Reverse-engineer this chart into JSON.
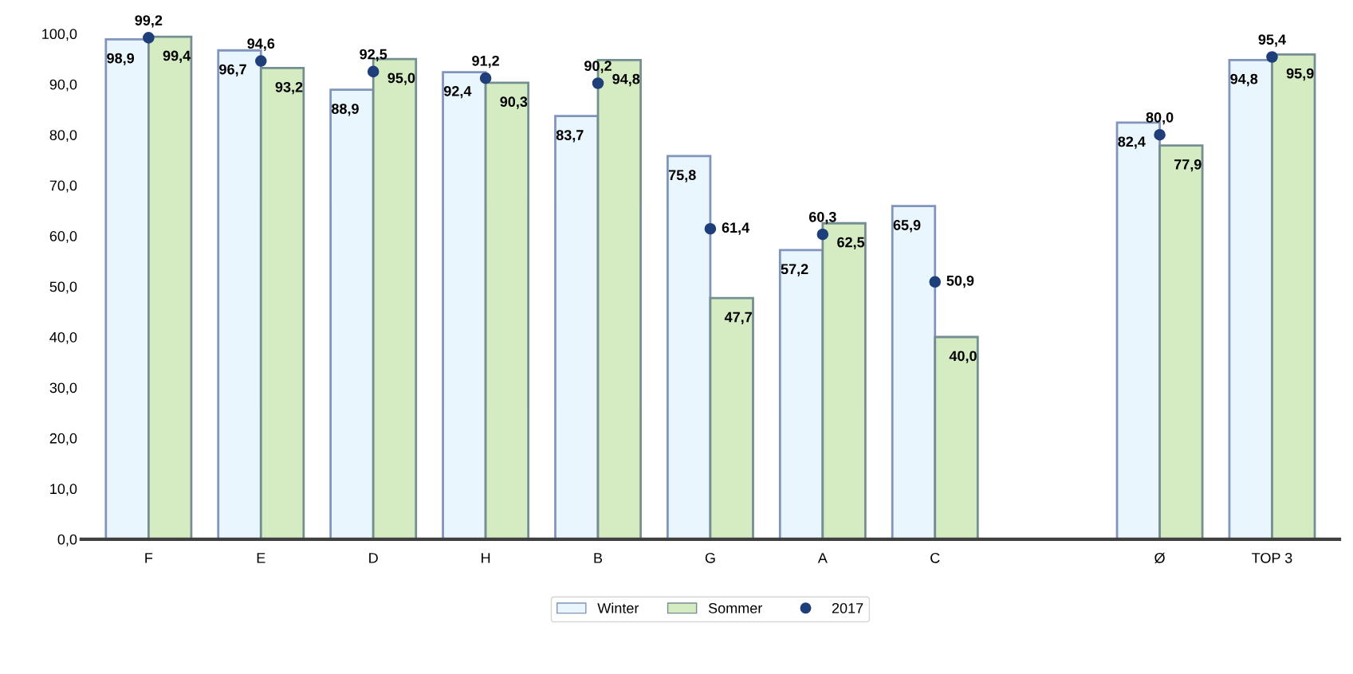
{
  "chart_data": {
    "type": "bar",
    "categories": [
      "F",
      "E",
      "D",
      "H",
      "B",
      "G",
      "A",
      "C",
      null,
      "Ø",
      "TOP 3"
    ],
    "series": [
      {
        "name": "Winter",
        "color": "#eaf6fd",
        "values": [
          98.9,
          96.7,
          88.9,
          92.4,
          83.7,
          75.8,
          57.2,
          65.9,
          null,
          82.4,
          94.8
        ],
        "value_labels": [
          "98,9",
          "96,7",
          "88,9",
          "92,4",
          "83,7",
          "75,8",
          "57,2",
          "65,9",
          null,
          "82,4",
          "94,8"
        ]
      },
      {
        "name": "Sommer",
        "color": "#d5ecc2",
        "values": [
          99.4,
          93.2,
          95.0,
          90.3,
          94.8,
          47.7,
          62.5,
          40.0,
          null,
          77.9,
          95.9
        ],
        "value_labels": [
          "99,4",
          "93,2",
          "95,0",
          "90,3",
          "94,8",
          "47,7",
          "62,5",
          "40,0",
          null,
          "77,9",
          "95,9"
        ]
      },
      {
        "name": "2017",
        "type": "scatter",
        "color": "#1f3f7a",
        "values": [
          99.2,
          94.6,
          92.5,
          91.2,
          90.2,
          61.4,
          60.3,
          50.9,
          null,
          80.0,
          95.4
        ],
        "value_labels": [
          "99,2",
          "94,6",
          "92,5",
          "91,2",
          "90,2",
          "61,4",
          "60,3",
          "50,9",
          null,
          "80,0",
          "95,4"
        ]
      }
    ],
    "ylim": [
      0,
      100
    ],
    "yticks": [
      {
        "value": 0,
        "label": "0,0"
      },
      {
        "value": 10,
        "label": "10,0"
      },
      {
        "value": 20,
        "label": "20,0"
      },
      {
        "value": 30,
        "label": "30,0"
      },
      {
        "value": 40,
        "label": "40,0"
      },
      {
        "value": 50,
        "label": "50,0"
      },
      {
        "value": 60,
        "label": "60,0"
      },
      {
        "value": 70,
        "label": "70,0"
      },
      {
        "value": 80,
        "label": "80,0"
      },
      {
        "value": 90,
        "label": "90,0"
      },
      {
        "value": 100,
        "label": "100,0"
      }
    ],
    "marker": "circle",
    "grid": false,
    "legend": "bottom"
  }
}
